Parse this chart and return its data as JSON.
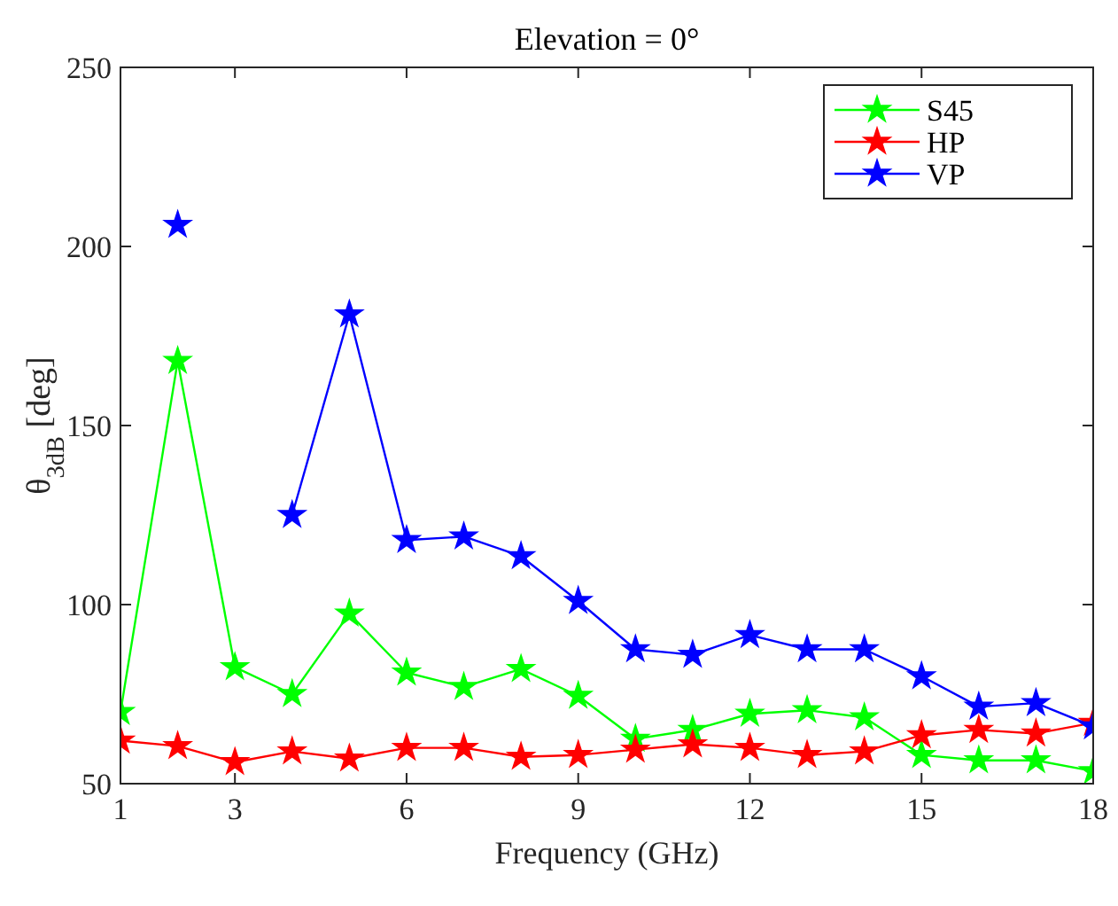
{
  "chart_data": {
    "type": "line",
    "title": "Elevation = 0°",
    "xlabel": "Frequency (GHz)",
    "ylabel": "θ$_{3dB}$ [deg]",
    "x": [
      1,
      2,
      3,
      4,
      5,
      6,
      7,
      8,
      9,
      10,
      11,
      12,
      13,
      14,
      15,
      16,
      17,
      18
    ],
    "series": [
      {
        "name": "S45",
        "color": "#00ff00",
        "values": [
          70,
          168,
          82.5,
          75,
          97.5,
          81,
          77,
          82,
          74.5,
          62.5,
          65,
          69.5,
          70.5,
          68.5,
          58,
          56.5,
          56.5,
          53.5
        ]
      },
      {
        "name": "HP",
        "color": "#ff0000",
        "values": [
          62,
          60.5,
          56,
          59,
          57,
          60,
          60,
          57.5,
          58,
          59.5,
          61,
          60,
          58,
          59,
          63.5,
          65,
          64,
          67
        ]
      },
      {
        "name": "VP",
        "color": "#0000ff",
        "values": [
          null,
          206,
          null,
          125,
          181,
          118,
          119,
          113.5,
          101,
          87.5,
          86,
          91.5,
          87.5,
          87.5,
          80,
          71.5,
          72.5,
          66
        ]
      }
    ],
    "xlim": [
      1,
      18
    ],
    "xticks": [
      1,
      3,
      6,
      9,
      12,
      15,
      18
    ],
    "ylim": [
      50,
      250
    ],
    "yticks": [
      50,
      100,
      150,
      200,
      250
    ],
    "grid": false,
    "legend": "top right",
    "marker": "star",
    "line_style": "solid"
  }
}
